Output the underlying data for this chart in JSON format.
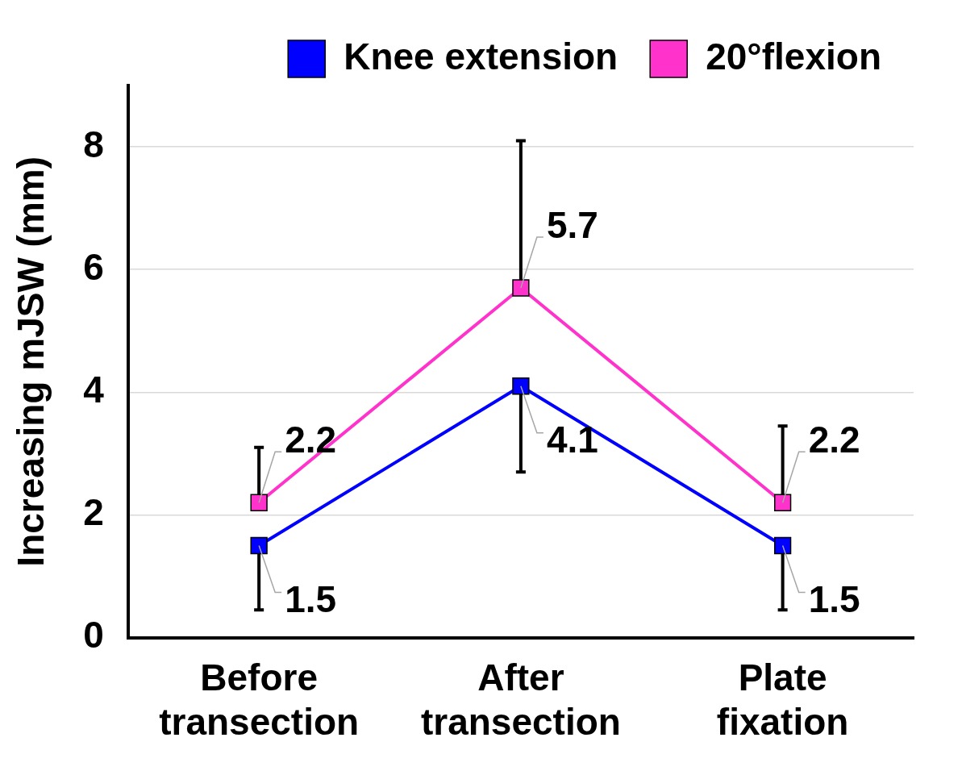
{
  "chart_data": {
    "type": "line",
    "ylabel": "Increasing mJSW (mm)",
    "categories": [
      "Before\ntransection",
      "After\ntransection",
      "Plate\nfixation"
    ],
    "series": [
      {
        "name": "Knee extension",
        "color": "#0000ff",
        "values": [
          1.5,
          4.1,
          1.5
        ],
        "errors": [
          [
            0.45,
            1.5
          ],
          [
            2.7,
            4.1
          ],
          [
            0.45,
            1.5
          ]
        ]
      },
      {
        "name": "20°flexion",
        "color": "#ff33cc",
        "values": [
          2.2,
          5.7,
          2.2
        ],
        "errors": [
          [
            2.2,
            3.1
          ],
          [
            5.7,
            8.1
          ],
          [
            2.2,
            3.45
          ]
        ]
      }
    ],
    "ylim": [
      0,
      9
    ],
    "yticks": [
      0,
      2,
      4,
      6,
      8
    ],
    "grid": "y",
    "legend": "top",
    "marker": "square",
    "line_style": "solid",
    "data_labels": true
  }
}
